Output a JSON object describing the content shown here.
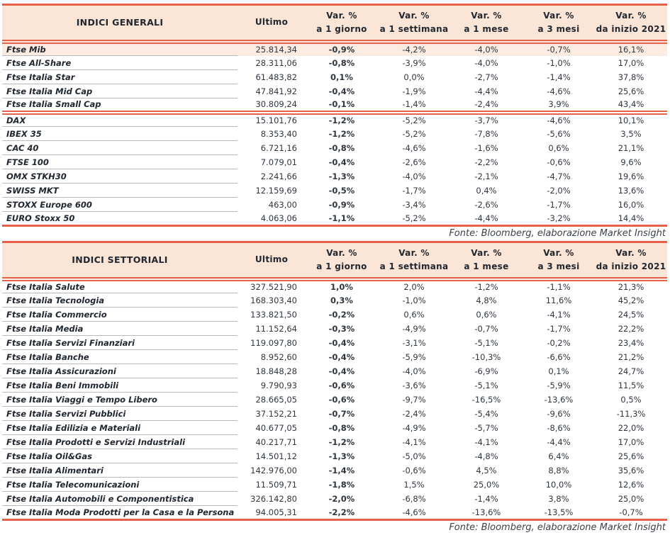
{
  "colors": {
    "accent": "#e7614a",
    "header_bg": "#fbe5d6",
    "highlight_bg": "#fcebe0",
    "text": "#30363e",
    "header_text": "#21272f",
    "fonte_text": "#3c424a",
    "divider": "#b9b9b9"
  },
  "column_headers": {
    "var_label": "Var. %",
    "ultimo": "Ultimo",
    "periods": [
      "a 1 giorno",
      "a 1 settimana",
      "a 1 mese",
      "a 3 mesi",
      "da inizio 2021"
    ]
  },
  "source_note": "Fonte: Bloomberg, elaborazione Market Insight",
  "tables": [
    {
      "title": "INDICI GENERALI",
      "groups": [
        {
          "rows": [
            {
              "name": "Ftse Mib",
              "ultimo": "25.814,34",
              "values": [
                "-0,9%",
                "-4,2%",
                "-4,0%",
                "-0,7%",
                "16,1%"
              ],
              "highlight": true
            },
            {
              "name": "Ftse All-Share",
              "ultimo": "28.311,06",
              "values": [
                "-0,8%",
                "-3,9%",
                "-4,0%",
                "-1,0%",
                "17,0%"
              ]
            },
            {
              "name": "Ftse Italia Star",
              "ultimo": "61.483,82",
              "values": [
                "0,1%",
                "0,0%",
                "-2,7%",
                "-1,4%",
                "37,8%"
              ]
            },
            {
              "name": "Ftse Italia Mid Cap",
              "ultimo": "47.841,92",
              "values": [
                "-0,4%",
                "-1,9%",
                "-4,4%",
                "-4,6%",
                "25,6%"
              ]
            },
            {
              "name": "Ftse Italia Small Cap",
              "ultimo": "30.809,24",
              "values": [
                "-0,1%",
                "-1,4%",
                "-2,4%",
                "3,9%",
                "43,4%"
              ]
            }
          ]
        },
        {
          "rows": [
            {
              "name": "DAX",
              "ultimo": "15.101,76",
              "values": [
                "-1,2%",
                "-5,2%",
                "-3,7%",
                "-4,6%",
                "10,1%"
              ]
            },
            {
              "name": "IBEX 35",
              "ultimo": "8.353,40",
              "values": [
                "-1,2%",
                "-5,2%",
                "-7,8%",
                "-5,6%",
                "3,5%"
              ]
            },
            {
              "name": "CAC 40",
              "ultimo": "6.721,16",
              "values": [
                "-0,8%",
                "-4,6%",
                "-1,6%",
                "0,6%",
                "21,1%"
              ]
            },
            {
              "name": "FTSE 100",
              "ultimo": "7.079,01",
              "values": [
                "-0,4%",
                "-2,6%",
                "-2,2%",
                "-0,6%",
                "9,6%"
              ]
            },
            {
              "name": "OMX STKH30",
              "ultimo": "2.241,66",
              "values": [
                "-1,3%",
                "-4,0%",
                "-2,1%",
                "-4,7%",
                "19,6%"
              ]
            },
            {
              "name": "SWISS MKT",
              "ultimo": "12.159,69",
              "values": [
                "-0,5%",
                "-1,7%",
                "0,4%",
                "-2,0%",
                "13,6%"
              ]
            },
            {
              "name": "STOXX Europe 600",
              "ultimo": "463,00",
              "values": [
                "-0,9%",
                "-3,4%",
                "-2,6%",
                "-1,7%",
                "16,0%"
              ]
            },
            {
              "name": "EURO Stoxx 50",
              "ultimo": "4.063,06",
              "values": [
                "-1,1%",
                "-5,2%",
                "-4,4%",
                "-3,2%",
                "14,4%"
              ]
            }
          ]
        }
      ]
    },
    {
      "title": "INDICI SETTORIALI",
      "groups": [
        {
          "rows": [
            {
              "name": "Ftse Italia Salute",
              "ultimo": "327.521,90",
              "values": [
                "1,0%",
                "2,0%",
                "-1,2%",
                "-1,1%",
                "21,3%"
              ]
            },
            {
              "name": "Ftse Italia Tecnologia",
              "ultimo": "168.303,40",
              "values": [
                "0,3%",
                "-1,0%",
                "4,8%",
                "11,6%",
                "45,2%"
              ]
            },
            {
              "name": "Ftse Italia Commercio",
              "ultimo": "133.821,50",
              "values": [
                "-0,2%",
                "0,6%",
                "0,6%",
                "-4,1%",
                "24,5%"
              ]
            },
            {
              "name": "Ftse Italia Media",
              "ultimo": "11.152,64",
              "values": [
                "-0,3%",
                "-4,9%",
                "-0,7%",
                "-1,7%",
                "22,2%"
              ]
            },
            {
              "name": "Ftse Italia Servizi Finanziari",
              "ultimo": "119.097,80",
              "values": [
                "-0,4%",
                "-3,1%",
                "-5,1%",
                "-0,2%",
                "23,4%"
              ]
            },
            {
              "name": "Ftse Italia Banche",
              "ultimo": "8.952,60",
              "values": [
                "-0,4%",
                "-5,9%",
                "-10,3%",
                "-6,6%",
                "21,2%"
              ]
            },
            {
              "name": "Ftse Italia Assicurazioni",
              "ultimo": "18.848,28",
              "values": [
                "-0,4%",
                "-4,0%",
                "-6,9%",
                "0,1%",
                "24,7%"
              ]
            },
            {
              "name": "Ftse Italia Beni Immobili",
              "ultimo": "9.790,93",
              "values": [
                "-0,6%",
                "-3,6%",
                "-5,1%",
                "-5,9%",
                "11,5%"
              ]
            },
            {
              "name": "Ftse Italia Viaggi e Tempo Libero",
              "ultimo": "28.665,05",
              "values": [
                "-0,6%",
                "-9,7%",
                "-16,5%",
                "-13,6%",
                "0,5%"
              ]
            },
            {
              "name": "Ftse Italia Servizi Pubblici",
              "ultimo": "37.152,21",
              "values": [
                "-0,7%",
                "-2,4%",
                "-5,4%",
                "-9,6%",
                "-11,3%"
              ]
            },
            {
              "name": "Ftse Italia Edilizia e Materiali",
              "ultimo": "40.677,05",
              "values": [
                "-0,8%",
                "-4,9%",
                "-5,7%",
                "-8,6%",
                "22,0%"
              ]
            },
            {
              "name": "Ftse Italia Prodotti e Servizi Industriali",
              "ultimo": "40.217,71",
              "values": [
                "-1,2%",
                "-4,1%",
                "-4,1%",
                "-4,4%",
                "17,0%"
              ]
            },
            {
              "name": "Ftse Italia Oil&Gas",
              "ultimo": "14.501,12",
              "values": [
                "-1,3%",
                "-5,0%",
                "-4,8%",
                "6,4%",
                "25,6%"
              ]
            },
            {
              "name": "Ftse Italia Alimentari",
              "ultimo": "142.976,00",
              "values": [
                "-1,4%",
                "-0,6%",
                "4,5%",
                "8,8%",
                "35,6%"
              ]
            },
            {
              "name": "Ftse Italia Telecomunicazioni",
              "ultimo": "11.509,71",
              "values": [
                "-1,8%",
                "1,5%",
                "25,0%",
                "10,0%",
                "12,6%"
              ]
            },
            {
              "name": "Ftse Italia Automobili e Componentistica",
              "ultimo": "326.142,80",
              "values": [
                "-2,0%",
                "-6,8%",
                "-1,4%",
                "3,8%",
                "25,0%"
              ]
            },
            {
              "name": "Ftse Italia Moda Prodotti per la Casa e la Persona",
              "ultimo": "94.005,31",
              "values": [
                "-2,2%",
                "-4,6%",
                "-13,6%",
                "-13,5%",
                "-0,7%"
              ]
            }
          ]
        }
      ]
    }
  ]
}
